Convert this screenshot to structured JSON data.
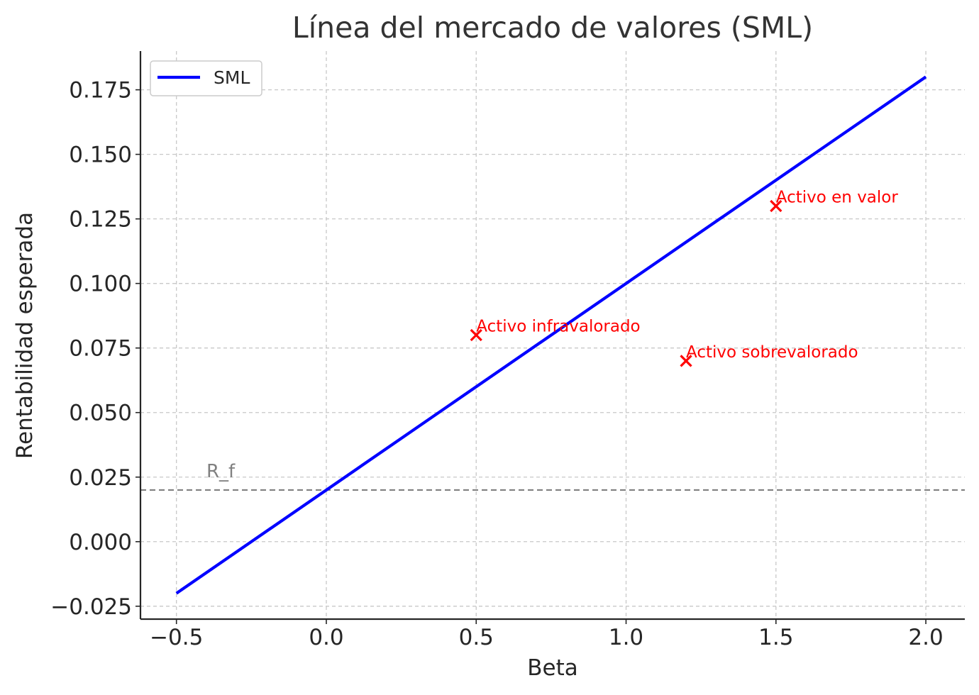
{
  "chart_data": {
    "type": "line",
    "title": "Línea del mercado de valores (SML)",
    "xlabel": "Beta",
    "ylabel": "Rentabilidad esperada",
    "xlim": [
      -0.62,
      2.13
    ],
    "ylim": [
      -0.03,
      0.19
    ],
    "x_ticks": [
      -0.5,
      0.0,
      0.5,
      1.0,
      1.5,
      2.0
    ],
    "x_tick_labels": [
      "−0.5",
      "0.0",
      "0.5",
      "1.0",
      "1.5",
      "2.0"
    ],
    "y_ticks": [
      -0.025,
      0.0,
      0.025,
      0.05,
      0.075,
      0.1,
      0.125,
      0.15,
      0.175
    ],
    "y_tick_labels": [
      "−0.025",
      "0.000",
      "0.025",
      "0.050",
      "0.075",
      "0.100",
      "0.125",
      "0.150",
      "0.175"
    ],
    "grid": true,
    "legend_position": "top-left",
    "series": [
      {
        "name": "SML",
        "style": "line",
        "color": "#0000ff",
        "x": [
          -0.5,
          2.0
        ],
        "y": [
          -0.02,
          0.18
        ]
      }
    ],
    "reference_lines": [
      {
        "orientation": "horizontal",
        "y": 0.02,
        "label": "R_f",
        "label_x": -0.4,
        "label_y": 0.025,
        "color": "#808080",
        "style": "dashed"
      }
    ],
    "points": [
      {
        "label": "Activo infravalorado",
        "x": 0.5,
        "y": 0.08,
        "color": "#ff0000",
        "marker": "x"
      },
      {
        "label": "Activo sobrevalorado",
        "x": 1.2,
        "y": 0.07,
        "color": "#ff0000",
        "marker": "x"
      },
      {
        "label": "Activo en valor",
        "x": 1.5,
        "y": 0.13,
        "color": "#ff0000",
        "marker": "x"
      }
    ]
  }
}
